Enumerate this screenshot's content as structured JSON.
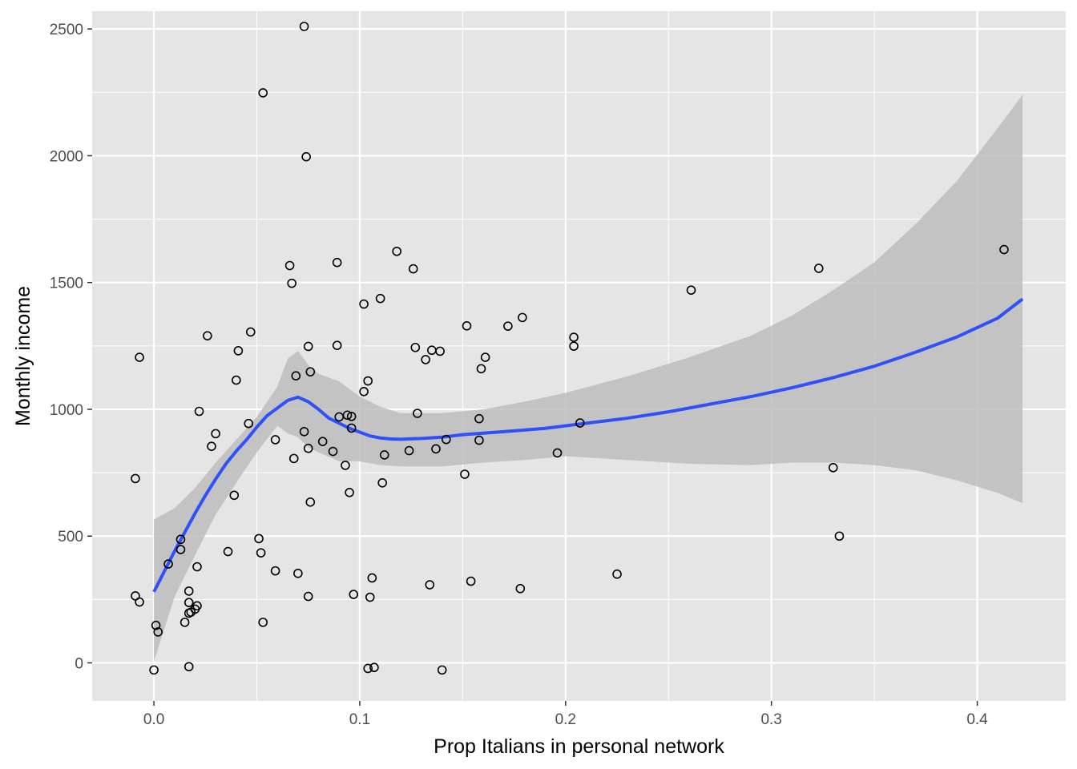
{
  "chart_data": {
    "type": "scatter",
    "title": "",
    "xlabel": "Prop Italians in personal network",
    "ylabel": "Monthly income",
    "xlim": [
      -0.03,
      0.443
    ],
    "ylim": [
      -150,
      2570
    ],
    "x_ticks": [
      0.0,
      0.1,
      0.2,
      0.3,
      0.4
    ],
    "x_tick_labels": [
      "0.0",
      "0.1",
      "0.2",
      "0.3",
      "0.4"
    ],
    "y_ticks": [
      0,
      500,
      1000,
      1500,
      2000,
      2500
    ],
    "y_tick_labels": [
      "0",
      "500",
      "1000",
      "1500",
      "2000",
      "2500"
    ],
    "grid": true,
    "colors": {
      "panel_bg": "#e5e5e5",
      "grid": "#ffffff",
      "smooth_line": "#3050f8",
      "ribbon": "#bdbdbd",
      "point_stroke": "#000000"
    },
    "points": [
      [
        0.073,
        2510
      ],
      [
        0.053,
        2248
      ],
      [
        0.074,
        1996
      ],
      [
        0.413,
        1630
      ],
      [
        0.118,
        1623
      ],
      [
        0.323,
        1556
      ],
      [
        0.126,
        1554
      ],
      [
        0.089,
        1579
      ],
      [
        0.066,
        1567
      ],
      [
        0.067,
        1497
      ],
      [
        0.261,
        1470
      ],
      [
        0.11,
        1437
      ],
      [
        0.102,
        1415
      ],
      [
        0.179,
        1362
      ],
      [
        0.152,
        1329
      ],
      [
        0.172,
        1328
      ],
      [
        0.047,
        1305
      ],
      [
        0.026,
        1290
      ],
      [
        0.204,
        1284
      ],
      [
        0.089,
        1252
      ],
      [
        0.075,
        1248
      ],
      [
        0.127,
        1244
      ],
      [
        0.204,
        1249
      ],
      [
        0.135,
        1233
      ],
      [
        0.139,
        1229
      ],
      [
        0.041,
        1231
      ],
      [
        -0.007,
        1205
      ],
      [
        0.161,
        1205
      ],
      [
        0.132,
        1196
      ],
      [
        0.159,
        1160
      ],
      [
        0.076,
        1148
      ],
      [
        0.069,
        1132
      ],
      [
        0.04,
        1115
      ],
      [
        0.104,
        1112
      ],
      [
        0.102,
        1070
      ],
      [
        0.022,
        992
      ],
      [
        0.128,
        984
      ],
      [
        0.094,
        977
      ],
      [
        0.096,
        972
      ],
      [
        0.09,
        970
      ],
      [
        0.158,
        963
      ],
      [
        0.046,
        944
      ],
      [
        0.207,
        946
      ],
      [
        0.096,
        926
      ],
      [
        0.073,
        912
      ],
      [
        0.03,
        904
      ],
      [
        0.059,
        880
      ],
      [
        0.142,
        881
      ],
      [
        0.158,
        878
      ],
      [
        0.082,
        873
      ],
      [
        0.028,
        854
      ],
      [
        0.075,
        846
      ],
      [
        0.137,
        844
      ],
      [
        0.087,
        834
      ],
      [
        0.124,
        837
      ],
      [
        0.196,
        828
      ],
      [
        0.112,
        820
      ],
      [
        0.068,
        806
      ],
      [
        0.093,
        779
      ],
      [
        0.33,
        770
      ],
      [
        0.151,
        744
      ],
      [
        -0.009,
        727
      ],
      [
        0.111,
        710
      ],
      [
        0.095,
        672
      ],
      [
        0.039,
        661
      ],
      [
        0.076,
        634
      ],
      [
        0.333,
        500
      ],
      [
        0.051,
        490
      ],
      [
        0.013,
        487
      ],
      [
        0.013,
        447
      ],
      [
        0.036,
        439
      ],
      [
        0.052,
        434
      ],
      [
        0.007,
        390
      ],
      [
        0.021,
        379
      ],
      [
        0.059,
        363
      ],
      [
        0.07,
        353
      ],
      [
        0.225,
        350
      ],
      [
        0.106,
        335
      ],
      [
        0.154,
        322
      ],
      [
        0.134,
        308
      ],
      [
        0.178,
        293
      ],
      [
        0.017,
        283
      ],
      [
        0.097,
        270
      ],
      [
        -0.009,
        264
      ],
      [
        0.075,
        262
      ],
      [
        0.105,
        259
      ],
      [
        -0.007,
        240
      ],
      [
        0.017,
        238
      ],
      [
        0.021,
        225
      ],
      [
        0.02,
        212
      ],
      [
        0.018,
        200
      ],
      [
        0.017,
        196
      ],
      [
        0.015,
        160
      ],
      [
        0.053,
        160
      ],
      [
        0.001,
        148
      ],
      [
        0.002,
        122
      ],
      [
        0.017,
        -15
      ],
      [
        0.107,
        -18
      ],
      [
        0.104,
        -22
      ],
      [
        0.14,
        -28
      ],
      [
        0.0,
        -28
      ]
    ],
    "smooth_line": [
      [
        0.0,
        280
      ],
      [
        0.005,
        360
      ],
      [
        0.01,
        440
      ],
      [
        0.015,
        515
      ],
      [
        0.02,
        590
      ],
      [
        0.025,
        660
      ],
      [
        0.03,
        725
      ],
      [
        0.035,
        785
      ],
      [
        0.04,
        835
      ],
      [
        0.045,
        880
      ],
      [
        0.05,
        930
      ],
      [
        0.055,
        975
      ],
      [
        0.06,
        1005
      ],
      [
        0.065,
        1035
      ],
      [
        0.07,
        1048
      ],
      [
        0.075,
        1030
      ],
      [
        0.08,
        1000
      ],
      [
        0.085,
        965
      ],
      [
        0.09,
        945
      ],
      [
        0.095,
        925
      ],
      [
        0.1,
        910
      ],
      [
        0.105,
        895
      ],
      [
        0.11,
        887
      ],
      [
        0.115,
        883
      ],
      [
        0.12,
        882
      ],
      [
        0.13,
        885
      ],
      [
        0.14,
        890
      ],
      [
        0.15,
        900
      ],
      [
        0.17,
        912
      ],
      [
        0.19,
        925
      ],
      [
        0.21,
        945
      ],
      [
        0.23,
        965
      ],
      [
        0.25,
        990
      ],
      [
        0.27,
        1020
      ],
      [
        0.29,
        1050
      ],
      [
        0.31,
        1085
      ],
      [
        0.33,
        1125
      ],
      [
        0.35,
        1170
      ],
      [
        0.37,
        1225
      ],
      [
        0.39,
        1285
      ],
      [
        0.41,
        1360
      ],
      [
        0.422,
        1435
      ]
    ],
    "ribbon_upper": [
      [
        0.0,
        565
      ],
      [
        0.01,
        610
      ],
      [
        0.02,
        690
      ],
      [
        0.03,
        790
      ],
      [
        0.04,
        880
      ],
      [
        0.05,
        970
      ],
      [
        0.06,
        1090
      ],
      [
        0.065,
        1200
      ],
      [
        0.07,
        1230
      ],
      [
        0.075,
        1175
      ],
      [
        0.08,
        1140
      ],
      [
        0.09,
        1110
      ],
      [
        0.1,
        1050
      ],
      [
        0.11,
        1010
      ],
      [
        0.12,
        985
      ],
      [
        0.14,
        985
      ],
      [
        0.16,
        1000
      ],
      [
        0.18,
        1030
      ],
      [
        0.2,
        1065
      ],
      [
        0.23,
        1130
      ],
      [
        0.26,
        1205
      ],
      [
        0.29,
        1290
      ],
      [
        0.31,
        1370
      ],
      [
        0.33,
        1470
      ],
      [
        0.35,
        1580
      ],
      [
        0.37,
        1730
      ],
      [
        0.39,
        1900
      ],
      [
        0.41,
        2110
      ],
      [
        0.422,
        2240
      ]
    ],
    "ribbon_lower": [
      [
        0.0,
        5
      ],
      [
        0.01,
        260
      ],
      [
        0.02,
        425
      ],
      [
        0.03,
        585
      ],
      [
        0.04,
        710
      ],
      [
        0.05,
        830
      ],
      [
        0.06,
        935
      ],
      [
        0.065,
        905
      ],
      [
        0.07,
        890
      ],
      [
        0.075,
        850
      ],
      [
        0.08,
        830
      ],
      [
        0.09,
        795
      ],
      [
        0.1,
        795
      ],
      [
        0.11,
        780
      ],
      [
        0.12,
        775
      ],
      [
        0.14,
        775
      ],
      [
        0.16,
        790
      ],
      [
        0.18,
        800
      ],
      [
        0.2,
        815
      ],
      [
        0.23,
        800
      ],
      [
        0.26,
        785
      ],
      [
        0.29,
        780
      ],
      [
        0.31,
        790
      ],
      [
        0.33,
        790
      ],
      [
        0.35,
        780
      ],
      [
        0.37,
        760
      ],
      [
        0.39,
        720
      ],
      [
        0.41,
        670
      ],
      [
        0.422,
        630
      ]
    ]
  }
}
